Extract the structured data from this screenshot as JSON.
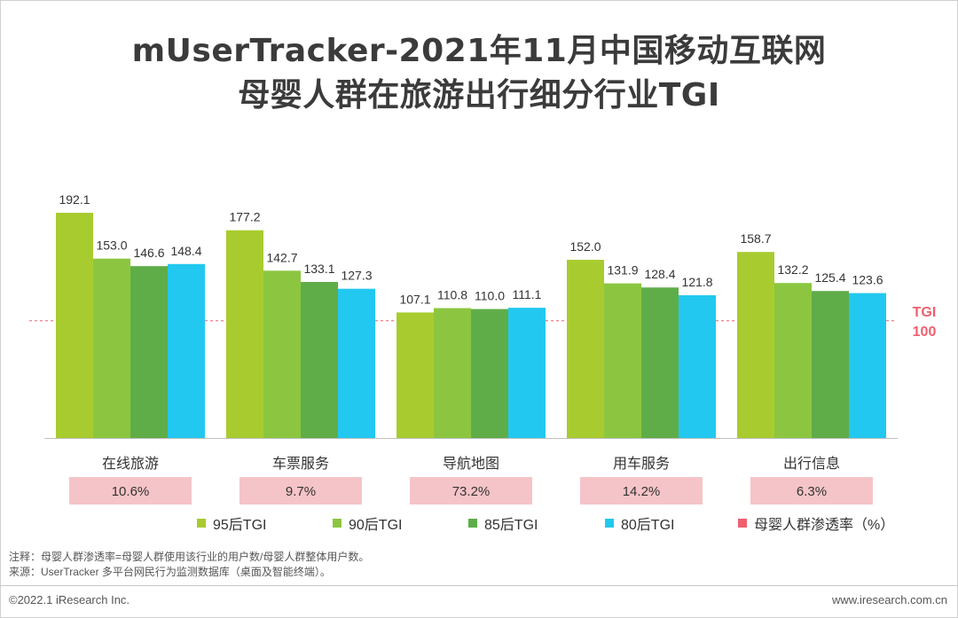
{
  "title_line1": "mUserTracker-2021年11月中国移动互联网",
  "title_line2": "母婴人群在旅游出行细分行业TGI",
  "chart_data": {
    "type": "bar",
    "title": "mUserTracker-2021年11月中国移动互联网 母婴人群在旅游出行细分行业TGI",
    "categories": [
      "在线旅游",
      "车票服务",
      "导航地图",
      "用车服务",
      "出行信息"
    ],
    "series": [
      {
        "name": "95后TGI",
        "color": "#a8cc2f",
        "values": [
          192.1,
          177.2,
          107.1,
          152.0,
          158.7
        ]
      },
      {
        "name": "90后TGI",
        "color": "#8cc640",
        "values": [
          153.0,
          142.7,
          110.8,
          131.9,
          132.2
        ]
      },
      {
        "name": "85后TGI",
        "color": "#5fad48",
        "values": [
          146.6,
          133.1,
          110.0,
          128.4,
          125.4
        ]
      },
      {
        "name": "80后TGI",
        "color": "#22c8f0",
        "values": [
          148.4,
          127.3,
          111.1,
          121.8,
          123.6
        ]
      }
    ],
    "penetration": {
      "name": "母婴人群渗透率（%）",
      "color": "#f5c4c8",
      "labels": [
        "10.6%",
        "9.7%",
        "73.2%",
        "14.2%",
        "6.3%"
      ]
    },
    "reference_line": {
      "value": 100,
      "label_top": "TGI",
      "label_bottom": "100",
      "color": "#f0606f"
    },
    "ylim": [
      0,
      200
    ],
    "grid": false,
    "legend_position": "bottom"
  },
  "notes": {
    "line1": "注释：母婴人群渗透率=母婴人群使用该行业的用户数/母婴人群整体用户数。",
    "line2": "来源：UserTracker 多平台网民行为监测数据库（桌面及智能终端）。"
  },
  "footer": {
    "left": "©2022.1 iResearch Inc.",
    "right": "www.iresearch.com.cn"
  }
}
